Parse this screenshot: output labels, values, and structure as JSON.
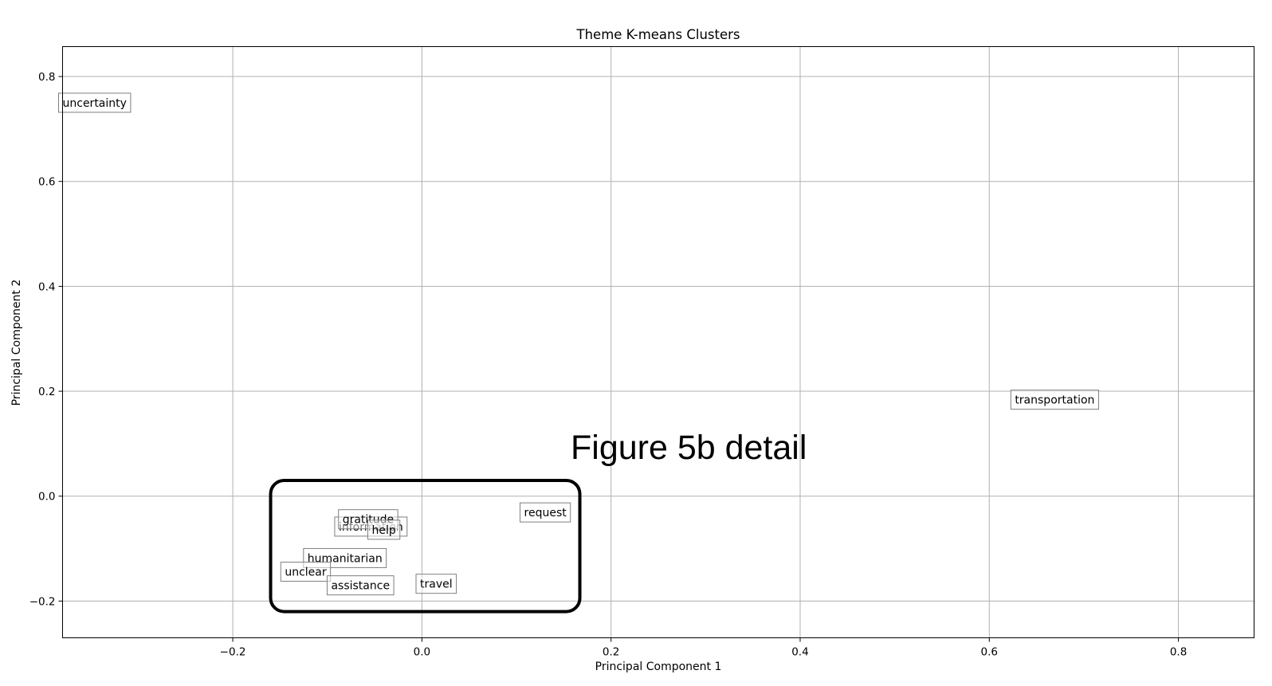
{
  "chart_data": {
    "type": "scatter",
    "title": "Theme K-means Clusters",
    "xlabel": "Principal Component 1",
    "ylabel": "Principal Component 2",
    "xlim": [
      -0.38,
      0.88
    ],
    "ylim": [
      -0.27,
      0.857
    ],
    "xticks": [
      -0.2,
      0.0,
      0.2,
      0.4,
      0.6,
      0.8
    ],
    "xtick_labels": [
      "−0.2",
      "0.0",
      "0.2",
      "0.4",
      "0.6",
      "0.8"
    ],
    "yticks": [
      -0.2,
      0.0,
      0.2,
      0.4,
      0.6,
      0.8
    ],
    "ytick_labels": [
      "−0.2",
      "0.0",
      "0.2",
      "0.4",
      "0.6",
      "0.8"
    ],
    "grid": true,
    "points": [
      {
        "label": "uncertainty",
        "x": -0.38,
        "y": 0.75
      },
      {
        "label": "transportation",
        "x": 0.627,
        "y": 0.184
      },
      {
        "label": "request",
        "x": 0.108,
        "y": -0.031
      },
      {
        "label": "information",
        "x": -0.088,
        "y": -0.058
      },
      {
        "label": "gratitude",
        "x": -0.084,
        "y": -0.044
      },
      {
        "label": "help",
        "x": -0.053,
        "y": -0.064
      },
      {
        "label": "humanitarian",
        "x": -0.121,
        "y": -0.118
      },
      {
        "label": "unclear",
        "x": -0.145,
        "y": -0.144
      },
      {
        "label": "assistance",
        "x": -0.096,
        "y": -0.17
      },
      {
        "label": "travel",
        "x": -0.002,
        "y": -0.167
      }
    ],
    "annotation": {
      "text": "Figure 5b detail",
      "highlight_region": {
        "x": [
          -0.16,
          0.167
        ],
        "y": [
          -0.22,
          0.03
        ]
      }
    }
  }
}
